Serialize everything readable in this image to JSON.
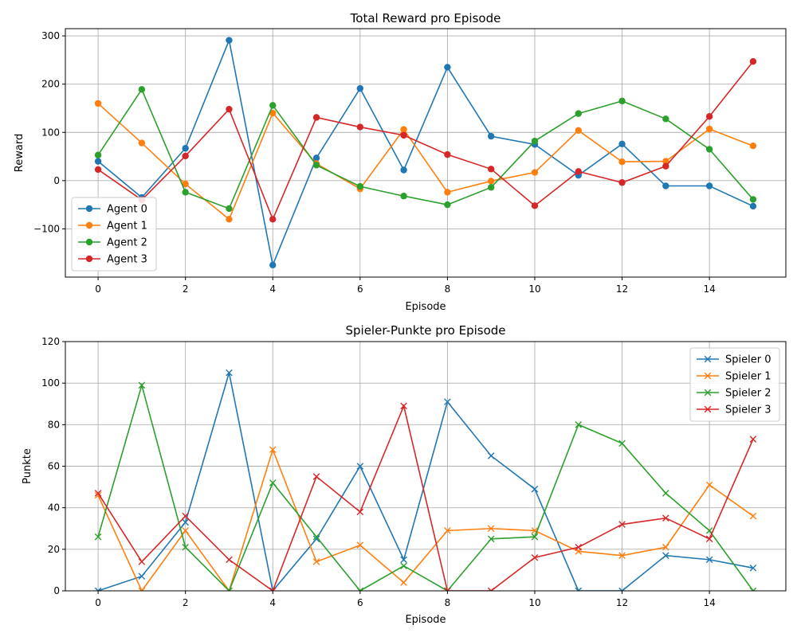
{
  "chart_data": [
    {
      "type": "line",
      "title": "Total Reward pro Episode",
      "xlabel": "Episode",
      "ylabel": "Reward",
      "x": [
        0,
        1,
        2,
        3,
        4,
        5,
        6,
        7,
        8,
        9,
        10,
        11,
        12,
        13,
        14,
        15
      ],
      "xlim": [
        -0.75,
        15.75
      ],
      "ylim": [
        -200,
        315
      ],
      "xticks": [
        0,
        2,
        4,
        6,
        8,
        10,
        12,
        14
      ],
      "yticks": [
        -100,
        0,
        100,
        200,
        300
      ],
      "ytick_labels": [
        "−100",
        "0",
        "100",
        "200",
        "300"
      ],
      "grid": true,
      "marker": "circle",
      "legend_position": "lower-left",
      "series": [
        {
          "name": "Agent 0",
          "color": "#1f77b4",
          "values": [
            40,
            -35,
            67,
            291,
            -175,
            47,
            191,
            22,
            235,
            92,
            75,
            11,
            76,
            -11,
            -11,
            -53
          ]
        },
        {
          "name": "Agent 1",
          "color": "#ff7f0e",
          "values": [
            160,
            78,
            -7,
            -80,
            140,
            35,
            -17,
            106,
            -24,
            -1,
            17,
            104,
            39,
            40,
            107,
            72
          ]
        },
        {
          "name": "Agent 2",
          "color": "#2ca02c",
          "values": [
            53,
            189,
            -24,
            -58,
            156,
            32,
            -12,
            -32,
            -50,
            -14,
            82,
            139,
            165,
            128,
            65,
            -39
          ]
        },
        {
          "name": "Agent 3",
          "color": "#d62728",
          "values": [
            23,
            -40,
            51,
            148,
            -80,
            131,
            111,
            94,
            54,
            24,
            -52,
            19,
            -4,
            30,
            133,
            247
          ]
        }
      ]
    },
    {
      "type": "line",
      "title": "Spieler-Punkte pro Episode",
      "xlabel": "Episode",
      "ylabel": "Punkte",
      "x": [
        0,
        1,
        2,
        3,
        4,
        5,
        6,
        7,
        8,
        9,
        10,
        11,
        12,
        13,
        14,
        15
      ],
      "xlim": [
        -0.75,
        15.75
      ],
      "ylim": [
        0,
        120
      ],
      "xticks": [
        0,
        2,
        4,
        6,
        8,
        10,
        12,
        14
      ],
      "yticks": [
        0,
        20,
        40,
        60,
        80,
        100,
        120
      ],
      "ytick_labels": [
        "0",
        "20",
        "40",
        "60",
        "80",
        "100",
        "120"
      ],
      "grid": true,
      "marker": "x",
      "legend_position": "upper-right",
      "series": [
        {
          "name": "Spieler 0",
          "color": "#1f77b4",
          "values": [
            0,
            7,
            33,
            105,
            0,
            25,
            60,
            15,
            91,
            65,
            49,
            0,
            0,
            17,
            15,
            11
          ]
        },
        {
          "name": "Spieler 1",
          "color": "#ff7f0e",
          "values": [
            46,
            0,
            29,
            0,
            68,
            14,
            22,
            4,
            29,
            30,
            29,
            19,
            17,
            21,
            51,
            36
          ]
        },
        {
          "name": "Spieler 2",
          "color": "#2ca02c",
          "values": [
            26,
            99,
            21,
            0,
            52,
            26,
            0,
            12,
            0,
            25,
            26,
            80,
            71,
            47,
            29,
            0
          ]
        },
        {
          "name": "Spieler 3",
          "color": "#d62728",
          "values": [
            47,
            14,
            36,
            15,
            0,
            55,
            38,
            89,
            0,
            0,
            16,
            21,
            32,
            35,
            25,
            73
          ]
        }
      ]
    }
  ]
}
